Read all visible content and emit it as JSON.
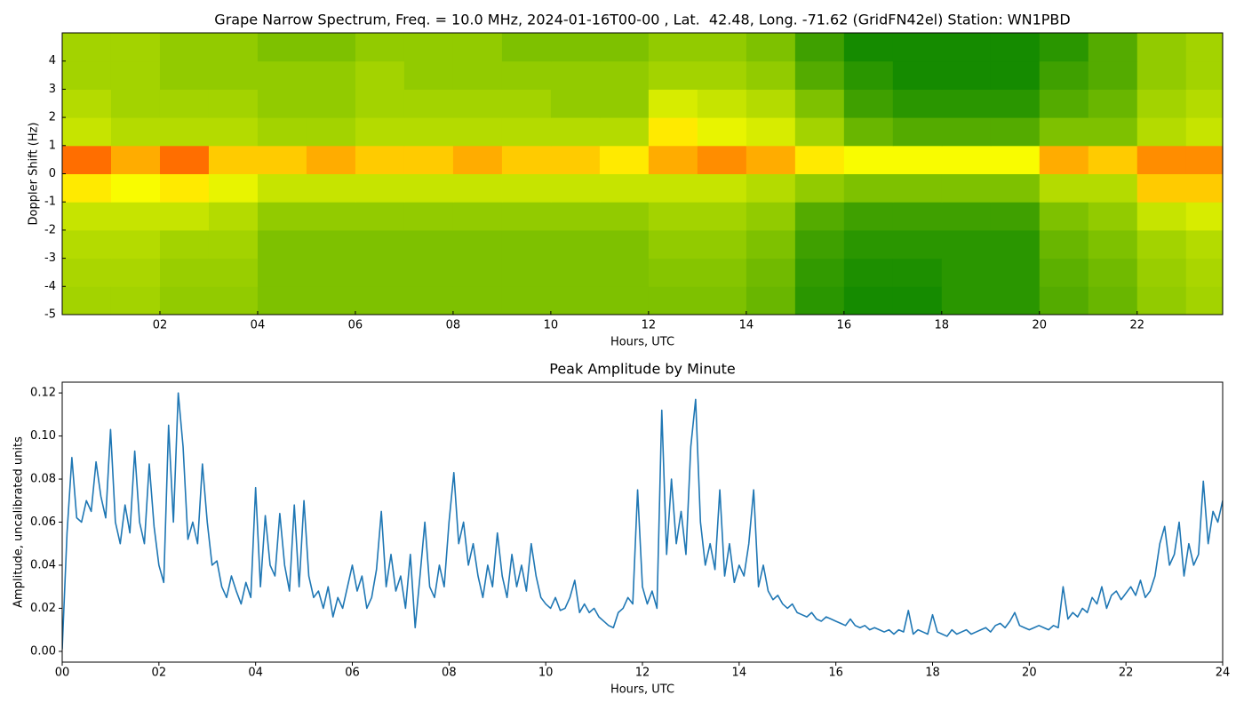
{
  "chart_data": [
    {
      "type": "heatmap",
      "title": "Grape Narrow Spectrum, Freq. = 10.0 MHz, 2024-01-16T00-00 , Lat.  42.48, Long. -71.62 (GridFN42el) Station: WN1PBD",
      "xlabel": "Hours, UTC",
      "ylabel": "Doppler Shift (Hz)",
      "xlim": [
        0,
        23.75
      ],
      "ylim": [
        -5,
        5
      ],
      "xticks": [
        {
          "value": 2,
          "label": "02"
        },
        {
          "value": 4,
          "label": "04"
        },
        {
          "value": 6,
          "label": "06"
        },
        {
          "value": 8,
          "label": "08"
        },
        {
          "value": 10,
          "label": "10"
        },
        {
          "value": 12,
          "label": "12"
        },
        {
          "value": 14,
          "label": "14"
        },
        {
          "value": 16,
          "label": "16"
        },
        {
          "value": 18,
          "label": "18"
        },
        {
          "value": 20,
          "label": "20"
        },
        {
          "value": 22,
          "label": "22"
        }
      ],
      "yticks": [
        4,
        3,
        2,
        1,
        0,
        -1,
        -2,
        -3,
        -4,
        -5
      ],
      "tick_direction": "in",
      "colorscale": [
        "#008000",
        "#8cc800",
        "#ffff00",
        "#ff3000"
      ],
      "xbins": [
        0,
        1,
        2,
        3,
        4,
        5,
        6,
        7,
        8,
        9,
        10,
        11,
        12,
        13,
        14,
        15,
        16,
        17,
        18,
        19,
        20,
        21,
        22,
        23,
        23.75
      ],
      "ybins": [
        -5,
        -4,
        -3,
        -2,
        -1,
        0,
        1,
        2,
        3,
        4,
        5
      ],
      "values": [
        [
          0.4,
          0.4,
          0.35,
          0.35,
          0.3,
          0.3,
          0.3,
          0.3,
          0.3,
          0.3,
          0.3,
          0.3,
          0.3,
          0.3,
          0.25,
          0.1,
          0.05,
          0.05,
          0.1,
          0.1,
          0.2,
          0.25,
          0.35,
          0.4
        ],
        [
          0.42,
          0.42,
          0.37,
          0.37,
          0.3,
          0.3,
          0.3,
          0.3,
          0.3,
          0.3,
          0.3,
          0.3,
          0.32,
          0.32,
          0.27,
          0.12,
          0.07,
          0.07,
          0.1,
          0.1,
          0.22,
          0.27,
          0.37,
          0.42
        ],
        [
          0.45,
          0.45,
          0.4,
          0.4,
          0.3,
          0.3,
          0.3,
          0.3,
          0.3,
          0.3,
          0.3,
          0.3,
          0.35,
          0.35,
          0.3,
          0.15,
          0.1,
          0.1,
          0.1,
          0.1,
          0.25,
          0.3,
          0.4,
          0.45
        ],
        [
          0.5,
          0.5,
          0.5,
          0.45,
          0.35,
          0.35,
          0.35,
          0.35,
          0.35,
          0.35,
          0.35,
          0.35,
          0.4,
          0.4,
          0.35,
          0.2,
          0.15,
          0.15,
          0.15,
          0.15,
          0.3,
          0.35,
          0.5,
          0.55
        ],
        [
          0.7,
          0.65,
          0.7,
          0.6,
          0.5,
          0.5,
          0.5,
          0.5,
          0.5,
          0.5,
          0.5,
          0.5,
          0.5,
          0.5,
          0.45,
          0.35,
          0.3,
          0.3,
          0.3,
          0.3,
          0.45,
          0.45,
          0.75,
          0.75
        ],
        [
          0.9,
          0.8,
          0.9,
          0.75,
          0.75,
          0.8,
          0.75,
          0.75,
          0.8,
          0.75,
          0.75,
          0.7,
          0.8,
          0.85,
          0.8,
          0.7,
          0.65,
          0.65,
          0.65,
          0.65,
          0.8,
          0.75,
          0.85,
          0.85
        ],
        [
          0.5,
          0.45,
          0.45,
          0.45,
          0.4,
          0.4,
          0.45,
          0.45,
          0.45,
          0.45,
          0.45,
          0.45,
          0.7,
          0.6,
          0.55,
          0.4,
          0.25,
          0.2,
          0.2,
          0.2,
          0.3,
          0.3,
          0.45,
          0.5
        ],
        [
          0.45,
          0.4,
          0.4,
          0.4,
          0.35,
          0.35,
          0.4,
          0.4,
          0.4,
          0.4,
          0.35,
          0.35,
          0.55,
          0.5,
          0.45,
          0.3,
          0.15,
          0.1,
          0.1,
          0.1,
          0.2,
          0.25,
          0.4,
          0.45
        ],
        [
          0.4,
          0.4,
          0.35,
          0.35,
          0.35,
          0.35,
          0.4,
          0.35,
          0.35,
          0.35,
          0.35,
          0.35,
          0.4,
          0.4,
          0.35,
          0.2,
          0.1,
          0.05,
          0.05,
          0.05,
          0.15,
          0.2,
          0.35,
          0.4
        ],
        [
          0.4,
          0.4,
          0.35,
          0.35,
          0.3,
          0.3,
          0.35,
          0.35,
          0.35,
          0.3,
          0.3,
          0.3,
          0.35,
          0.35,
          0.3,
          0.15,
          0.05,
          0.05,
          0.05,
          0.05,
          0.1,
          0.2,
          0.35,
          0.4
        ]
      ]
    },
    {
      "type": "line",
      "title": "Peak Amplitude by Minute",
      "xlabel": "Hours, UTC",
      "ylabel": "Amplitude, uncalibrated units",
      "xlim": [
        0,
        24
      ],
      "ylim": [
        -0.005,
        0.125
      ],
      "xticks": [
        {
          "value": 0,
          "label": "00"
        },
        {
          "value": 2,
          "label": "02"
        },
        {
          "value": 4,
          "label": "04"
        },
        {
          "value": 6,
          "label": "06"
        },
        {
          "value": 8,
          "label": "08"
        },
        {
          "value": 10,
          "label": "10"
        },
        {
          "value": 12,
          "label": "12"
        },
        {
          "value": 14,
          "label": "14"
        },
        {
          "value": 16,
          "label": "16"
        },
        {
          "value": 18,
          "label": "18"
        },
        {
          "value": 20,
          "label": "20"
        },
        {
          "value": 22,
          "label": "22"
        },
        {
          "value": 24,
          "label": "24"
        }
      ],
      "yticks": [
        {
          "value": 0,
          "label": "0.00"
        },
        {
          "value": 0.02,
          "label": "0.02"
        },
        {
          "value": 0.04,
          "label": "0.04"
        },
        {
          "value": 0.06,
          "label": "0.06"
        },
        {
          "value": 0.08,
          "label": "0.08"
        },
        {
          "value": 0.1,
          "label": "0.10"
        },
        {
          "value": 0.12,
          "label": "0.12"
        }
      ],
      "tick_direction": "out",
      "x": [
        0,
        0.1,
        0.2,
        0.3,
        0.4,
        0.5,
        0.6,
        0.7,
        0.8,
        0.9,
        1,
        1.1,
        1.2,
        1.3,
        1.4,
        1.5,
        1.6,
        1.7,
        1.8,
        1.9,
        2,
        2.1,
        2.2,
        2.3,
        2.4,
        2.5,
        2.6,
        2.7,
        2.8,
        2.9,
        3,
        3.1,
        3.2,
        3.3,
        3.4,
        3.5,
        3.6,
        3.7,
        3.8,
        3.9,
        4,
        4.1,
        4.2,
        4.3,
        4.4,
        4.5,
        4.6,
        4.7,
        4.8,
        4.9,
        5,
        5.1,
        5.2,
        5.3,
        5.4,
        5.5,
        5.6,
        5.7,
        5.8,
        5.9,
        6,
        6.1,
        6.2,
        6.3,
        6.4,
        6.5,
        6.6,
        6.7,
        6.8,
        6.9,
        7,
        7.1,
        7.2,
        7.3,
        7.4,
        7.5,
        7.6,
        7.7,
        7.8,
        7.9,
        8,
        8.1,
        8.2,
        8.3,
        8.4,
        8.5,
        8.6,
        8.7,
        8.8,
        8.9,
        9,
        9.1,
        9.2,
        9.3,
        9.4,
        9.5,
        9.6,
        9.7,
        9.8,
        9.9,
        10,
        10.1,
        10.2,
        10.3,
        10.4,
        10.5,
        10.6,
        10.7,
        10.8,
        10.9,
        11,
        11.1,
        11.2,
        11.3,
        11.4,
        11.5,
        11.6,
        11.7,
        11.8,
        11.9,
        12,
        12.1,
        12.2,
        12.3,
        12.4,
        12.5,
        12.6,
        12.7,
        12.8,
        12.9,
        13,
        13.1,
        13.2,
        13.3,
        13.4,
        13.5,
        13.6,
        13.7,
        13.8,
        13.9,
        14,
        14.1,
        14.2,
        14.3,
        14.4,
        14.5,
        14.6,
        14.7,
        14.8,
        14.9,
        15,
        15.1,
        15.2,
        15.3,
        15.4,
        15.5,
        15.6,
        15.7,
        15.8,
        15.9,
        16,
        16.1,
        16.2,
        16.3,
        16.4,
        16.5,
        16.6,
        16.7,
        16.8,
        16.9,
        17,
        17.1,
        17.2,
        17.3,
        17.4,
        17.5,
        17.6,
        17.7,
        17.8,
        17.9,
        18,
        18.1,
        18.2,
        18.3,
        18.4,
        18.5,
        18.6,
        18.7,
        18.8,
        18.9,
        19,
        19.1,
        19.2,
        19.3,
        19.4,
        19.5,
        19.6,
        19.7,
        19.8,
        19.9,
        20,
        20.1,
        20.2,
        20.3,
        20.4,
        20.5,
        20.6,
        20.7,
        20.8,
        20.9,
        21,
        21.1,
        21.2,
        21.3,
        21.4,
        21.5,
        21.6,
        21.7,
        21.8,
        21.9,
        22,
        22.1,
        22.2,
        22.3,
        22.4,
        22.5,
        22.6,
        22.7,
        22.8,
        22.9,
        23,
        23.1,
        23.2,
        23.3,
        23.4,
        23.5,
        23.6,
        23.7,
        23.8,
        23.9,
        24
      ],
      "series": [
        {
          "color": "#1f77b4",
          "values": [
            0.001,
            0.055,
            0.09,
            0.062,
            0.06,
            0.07,
            0.065,
            0.088,
            0.072,
            0.062,
            0.103,
            0.06,
            0.05,
            0.068,
            0.055,
            0.093,
            0.06,
            0.05,
            0.087,
            0.058,
            0.04,
            0.032,
            0.105,
            0.06,
            0.12,
            0.095,
            0.052,
            0.06,
            0.05,
            0.087,
            0.06,
            0.04,
            0.042,
            0.03,
            0.025,
            0.035,
            0.028,
            0.022,
            0.032,
            0.025,
            0.076,
            0.03,
            0.063,
            0.04,
            0.035,
            0.064,
            0.04,
            0.028,
            0.068,
            0.03,
            0.07,
            0.035,
            0.025,
            0.028,
            0.02,
            0.03,
            0.016,
            0.025,
            0.02,
            0.03,
            0.04,
            0.028,
            0.035,
            0.02,
            0.025,
            0.038,
            0.065,
            0.03,
            0.045,
            0.028,
            0.035,
            0.02,
            0.045,
            0.011,
            0.035,
            0.06,
            0.03,
            0.025,
            0.04,
            0.03,
            0.06,
            0.083,
            0.05,
            0.06,
            0.04,
            0.05,
            0.035,
            0.025,
            0.04,
            0.03,
            0.055,
            0.035,
            0.025,
            0.045,
            0.03,
            0.04,
            0.028,
            0.05,
            0.035,
            0.025,
            0.022,
            0.02,
            0.025,
            0.019,
            0.02,
            0.025,
            0.033,
            0.018,
            0.022,
            0.018,
            0.02,
            0.016,
            0.014,
            0.012,
            0.011,
            0.018,
            0.02,
            0.025,
            0.022,
            0.075,
            0.03,
            0.022,
            0.028,
            0.02,
            0.112,
            0.045,
            0.08,
            0.05,
            0.065,
            0.045,
            0.095,
            0.117,
            0.06,
            0.04,
            0.05,
            0.038,
            0.075,
            0.035,
            0.05,
            0.032,
            0.04,
            0.035,
            0.05,
            0.075,
            0.03,
            0.04,
            0.028,
            0.024,
            0.026,
            0.022,
            0.02,
            0.022,
            0.018,
            0.017,
            0.016,
            0.018,
            0.015,
            0.014,
            0.016,
            0.015,
            0.014,
            0.013,
            0.012,
            0.015,
            0.012,
            0.011,
            0.012,
            0.01,
            0.011,
            0.01,
            0.009,
            0.01,
            0.008,
            0.01,
            0.009,
            0.019,
            0.008,
            0.01,
            0.009,
            0.008,
            0.017,
            0.009,
            0.008,
            0.007,
            0.01,
            0.008,
            0.009,
            0.01,
            0.008,
            0.009,
            0.01,
            0.011,
            0.009,
            0.012,
            0.013,
            0.011,
            0.014,
            0.018,
            0.012,
            0.011,
            0.01,
            0.011,
            0.012,
            0.011,
            0.01,
            0.012,
            0.011,
            0.03,
            0.015,
            0.018,
            0.016,
            0.02,
            0.018,
            0.025,
            0.022,
            0.03,
            0.02,
            0.026,
            0.028,
            0.024,
            0.027,
            0.03,
            0.026,
            0.033,
            0.025,
            0.028,
            0.035,
            0.05,
            0.058,
            0.04,
            0.045,
            0.06,
            0.035,
            0.05,
            0.04,
            0.045,
            0.079,
            0.05,
            0.065,
            0.06,
            0.07
          ]
        }
      ]
    }
  ]
}
